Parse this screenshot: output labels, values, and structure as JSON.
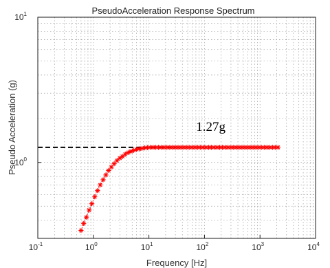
{
  "chart_data": {
    "type": "scatter",
    "title": "PseudoAcceleration Response Spectrum",
    "xlabel": "Frequency [Hz]",
    "ylabel": "Pseudo Acceleration (g)",
    "xscale": "log",
    "yscale": "log",
    "xlim": [
      0.1,
      10000
    ],
    "ylim": [
      0.3,
      10
    ],
    "grid": true,
    "grid_style": "dotted",
    "x_ticks": [
      {
        "base": "10",
        "exp": "-1",
        "value": 0.1
      },
      {
        "base": "10",
        "exp": "0",
        "value": 1
      },
      {
        "base": "10",
        "exp": "1",
        "value": 10
      },
      {
        "base": "10",
        "exp": "2",
        "value": 100
      },
      {
        "base": "10",
        "exp": "3",
        "value": 1000
      },
      {
        "base": "10",
        "exp": "4",
        "value": 10000
      }
    ],
    "y_ticks": [
      {
        "base": "10",
        "exp": "0",
        "value": 1
      },
      {
        "base": "10",
        "exp": "1",
        "value": 10
      }
    ],
    "series": [
      {
        "marker": "asterisk",
        "line": "dotted",
        "color": "#ff0000",
        "x": [
          0.6,
          0.67,
          0.75,
          0.84,
          0.94,
          1.06,
          1.19,
          1.33,
          1.5,
          1.68,
          1.88,
          2.11,
          2.37,
          2.66,
          2.99,
          3.35,
          3.76,
          4.22,
          4.73,
          5.31,
          5.96,
          6.68,
          7.5,
          8.41,
          9.44,
          10.6,
          11.9,
          13.3,
          14.9,
          16.8,
          18.8,
          21.1,
          23.7,
          26.6,
          29.9,
          33.5,
          37.6,
          42.2,
          47.3,
          53.1,
          59.6,
          66.8,
          75,
          84.1,
          94.4,
          106,
          119,
          133,
          149,
          168,
          188,
          211,
          237,
          266,
          299,
          335,
          376,
          422,
          473,
          531,
          596,
          668,
          750,
          841,
          944,
          1060,
          1190,
          1330,
          1490,
          1680,
          1880,
          2110
        ],
        "y": [
          0.34,
          0.38,
          0.42,
          0.47,
          0.52,
          0.58,
          0.64,
          0.7,
          0.76,
          0.82,
          0.88,
          0.93,
          0.98,
          1.03,
          1.07,
          1.1,
          1.14,
          1.17,
          1.19,
          1.21,
          1.23,
          1.24,
          1.25,
          1.26,
          1.265,
          1.27,
          1.27,
          1.27,
          1.27,
          1.27,
          1.27,
          1.27,
          1.27,
          1.27,
          1.27,
          1.27,
          1.27,
          1.27,
          1.27,
          1.27,
          1.27,
          1.27,
          1.27,
          1.27,
          1.27,
          1.27,
          1.27,
          1.27,
          1.27,
          1.27,
          1.27,
          1.27,
          1.27,
          1.27,
          1.27,
          1.27,
          1.27,
          1.27,
          1.27,
          1.27,
          1.27,
          1.27,
          1.27,
          1.27,
          1.27,
          1.27,
          1.27,
          1.27,
          1.27,
          1.27,
          1.27,
          1.27
        ]
      }
    ],
    "reference_line": {
      "value": 1.27,
      "style": "dashed",
      "color": "#000000",
      "x_range": [
        0.1,
        30
      ]
    },
    "annotation": {
      "text": "1.27g",
      "x": 130,
      "y": 1.65
    }
  }
}
